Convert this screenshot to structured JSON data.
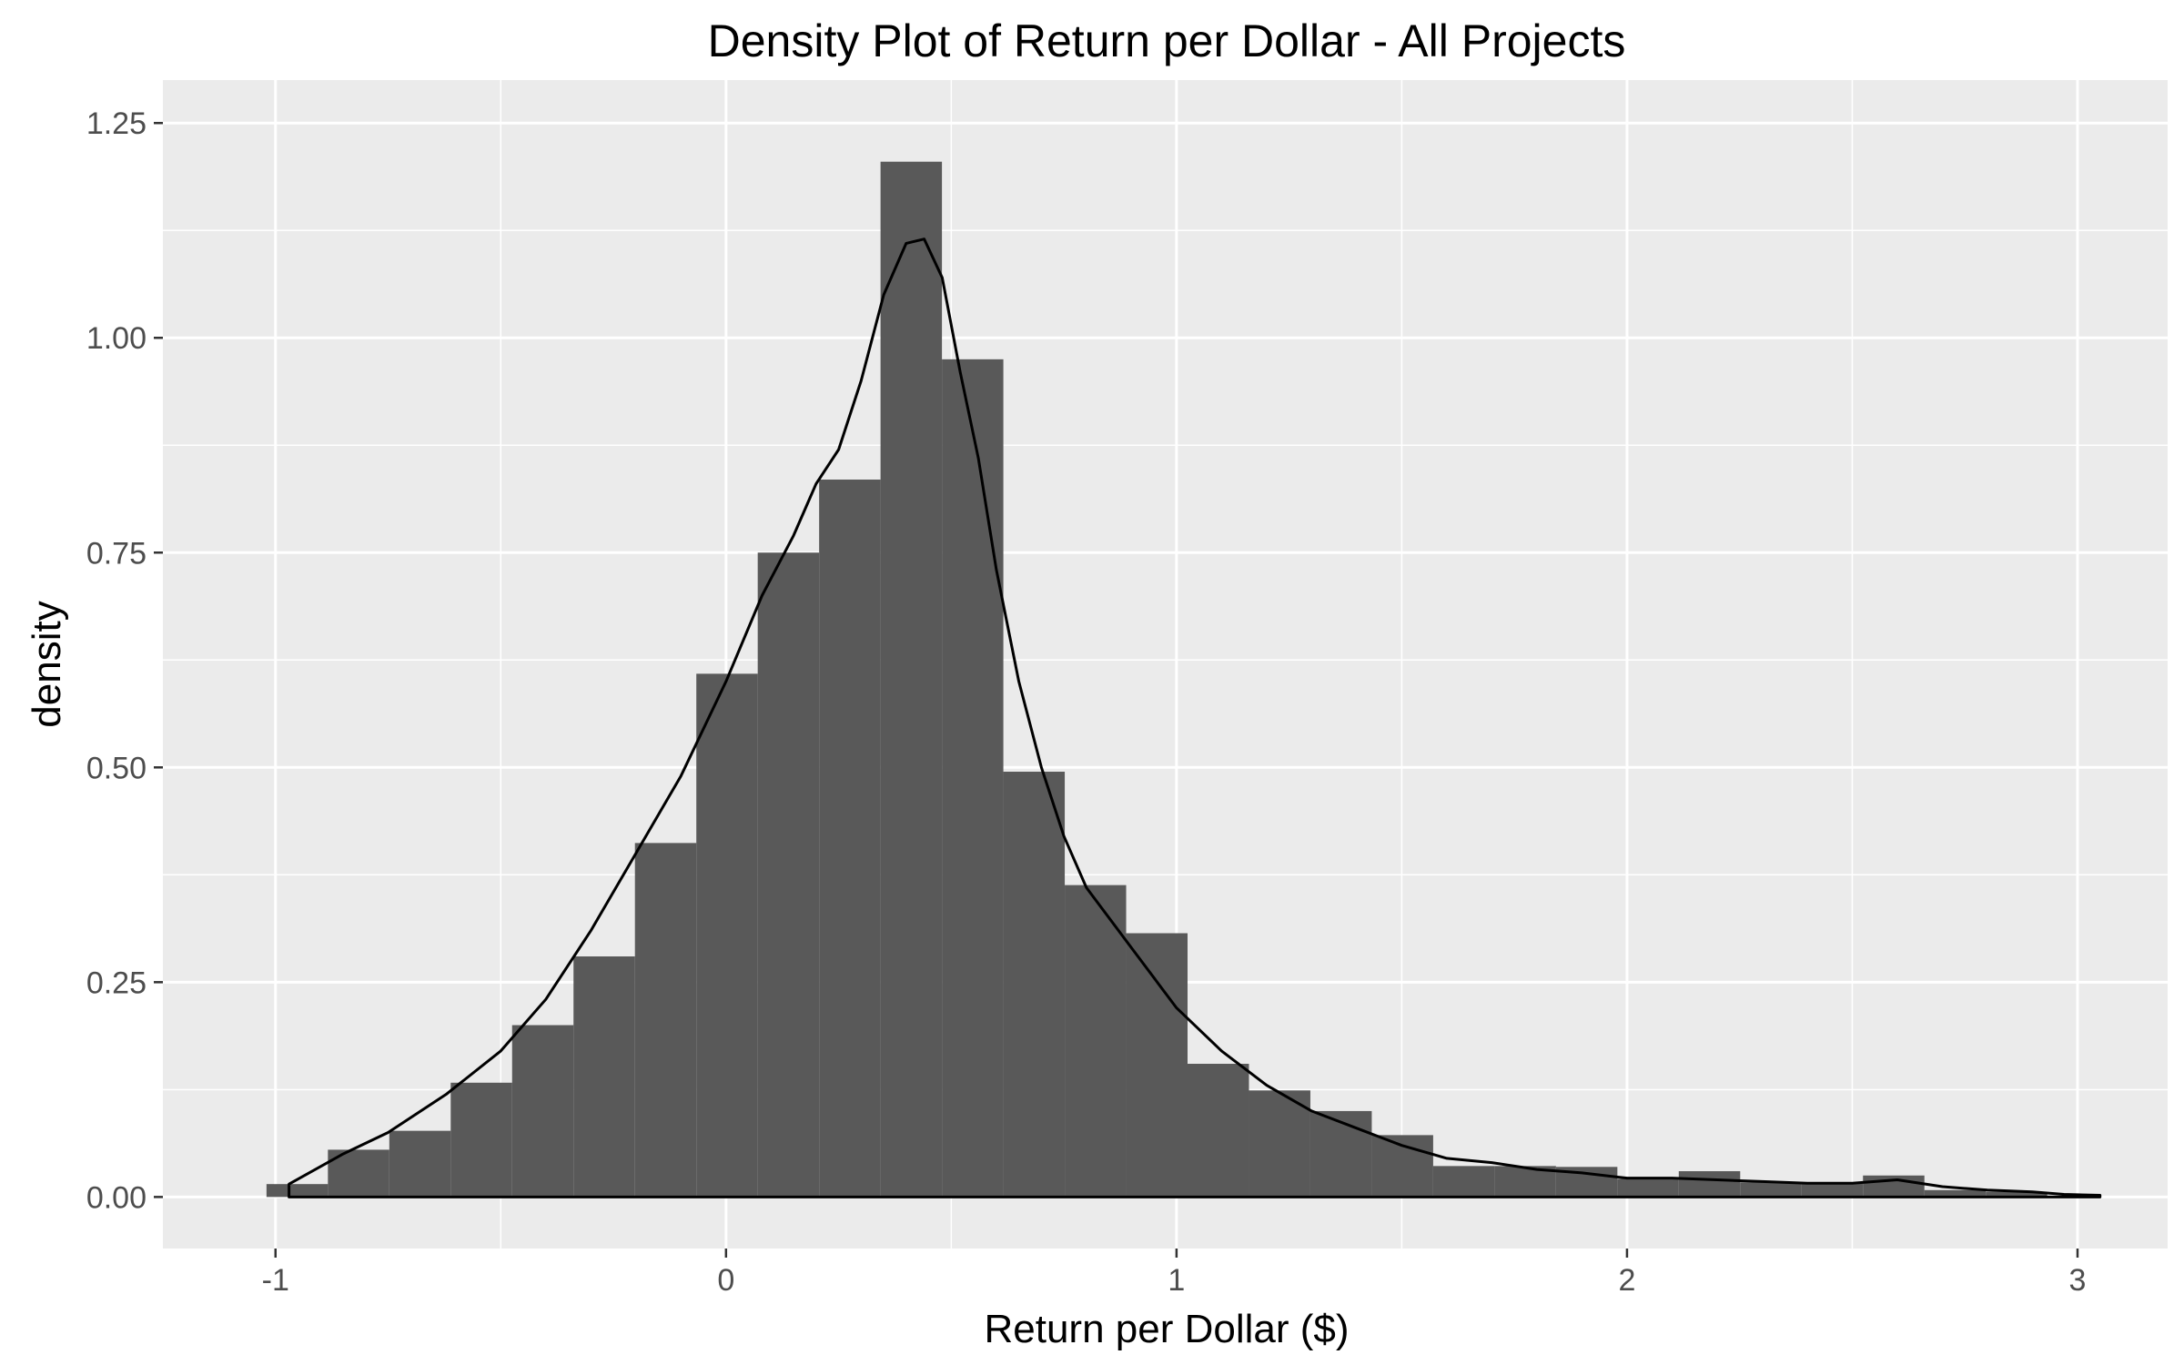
{
  "chart_data": {
    "type": "histogram",
    "title": "Density Plot of Return per Dollar - All Projects",
    "xlabel": "Return per Dollar ($)",
    "ylabel": "density",
    "xlim": [
      -1.25,
      3.2
    ],
    "ylim": [
      -0.06,
      1.3
    ],
    "x_ticks": [
      -1,
      0,
      1,
      2,
      3
    ],
    "x_tick_labels": [
      "-1",
      "0",
      "1",
      "2",
      "3"
    ],
    "y_ticks": [
      0,
      0.25,
      0.5,
      0.75,
      1.0,
      1.25
    ],
    "y_tick_labels": [
      "0.00",
      "0.25",
      "0.50",
      "0.75",
      "1.00",
      "1.25"
    ],
    "grid": true,
    "legend": "none",
    "colors": {
      "panel": "#ebebeb",
      "grid": "#ffffff",
      "bar": "#595959",
      "curve": "#000000"
    },
    "bins": {
      "bin_width": 0.1363,
      "x_start": -1.02,
      "values": [
        0.015,
        0.055,
        0.077,
        0.133,
        0.2,
        0.28,
        0.412,
        0.609,
        0.75,
        0.835,
        1.205,
        0.975,
        0.495,
        0.363,
        0.307,
        0.155,
        0.124,
        0.1,
        0.072,
        0.036,
        0.036,
        0.035,
        0.021,
        0.03,
        0.017,
        0.016,
        0.025,
        0.008,
        0.006
      ]
    },
    "density_curve": {
      "x": [
        -0.97,
        -0.85,
        -0.75,
        -0.62,
        -0.5,
        -0.4,
        -0.3,
        -0.2,
        -0.1,
        0.0,
        0.08,
        0.15,
        0.2,
        0.25,
        0.3,
        0.35,
        0.4,
        0.44,
        0.48,
        0.52,
        0.56,
        0.6,
        0.65,
        0.7,
        0.75,
        0.8,
        0.9,
        1.0,
        1.1,
        1.2,
        1.3,
        1.4,
        1.5,
        1.6,
        1.7,
        1.8,
        1.9,
        2.0,
        2.1,
        2.2,
        2.3,
        2.4,
        2.5,
        2.6,
        2.7,
        2.8,
        2.9,
        2.97,
        3.05
      ],
      "y": [
        0.015,
        0.05,
        0.075,
        0.12,
        0.17,
        0.23,
        0.31,
        0.4,
        0.49,
        0.6,
        0.7,
        0.77,
        0.83,
        0.87,
        0.95,
        1.05,
        1.11,
        1.115,
        1.07,
        0.96,
        0.86,
        0.73,
        0.6,
        0.5,
        0.42,
        0.36,
        0.29,
        0.22,
        0.17,
        0.13,
        0.1,
        0.08,
        0.06,
        0.045,
        0.04,
        0.032,
        0.028,
        0.022,
        0.022,
        0.02,
        0.018,
        0.016,
        0.016,
        0.02,
        0.012,
        0.008,
        0.006,
        0.003,
        0.002
      ]
    }
  }
}
